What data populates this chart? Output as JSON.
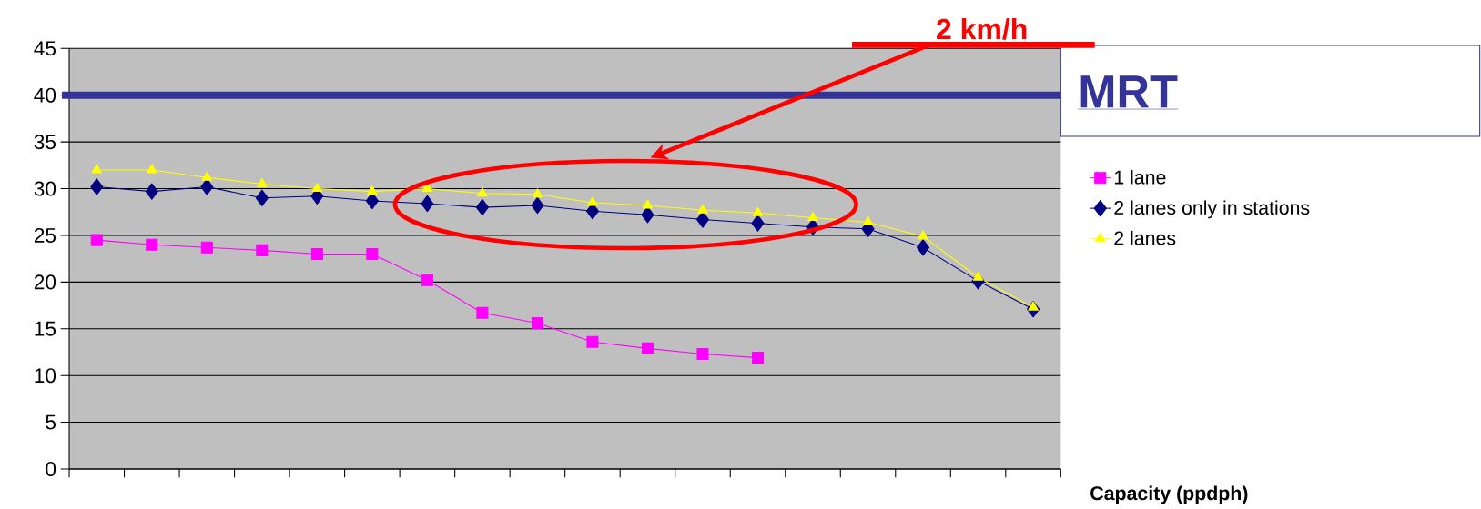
{
  "chart_data": {
    "type": "line",
    "xlabel": "Capacity (ppdph)",
    "categories": [
      null,
      null,
      null,
      null,
      null,
      null,
      null,
      null,
      null,
      null,
      null,
      null,
      null,
      null,
      null,
      null,
      null,
      null
    ],
    "series": [
      {
        "name": "1 lane",
        "color": "#ff00ff",
        "marker": "square",
        "values": [
          24.5,
          24,
          23.7,
          23.4,
          23,
          23,
          20.2,
          16.7,
          15.6,
          13.6,
          12.9,
          12.3,
          11.9,
          null,
          null,
          null,
          null,
          null
        ]
      },
      {
        "name": "2 lanes only in stations",
        "color": "#000080",
        "marker": "diamond",
        "values": [
          30.2,
          29.7,
          30.2,
          29,
          29.2,
          28.7,
          28.4,
          28,
          28.2,
          27.6,
          27.2,
          26.7,
          26.3,
          25.9,
          25.7,
          23.7,
          20.1,
          17.1
        ]
      },
      {
        "name": "2 lanes",
        "color": "#ffff00",
        "marker": "triangle",
        "values": [
          32,
          32,
          31.2,
          30.5,
          30,
          29.7,
          30,
          29.5,
          29.4,
          28.5,
          28.2,
          27.7,
          27.4,
          26.9,
          26.4,
          24.9,
          20.5,
          17.3
        ]
      }
    ],
    "ylim": [
      0,
      45
    ],
    "yticks": [
      0,
      5,
      10,
      15,
      20,
      25,
      30,
      35,
      40,
      45
    ],
    "grid": "y",
    "legend": "right",
    "line_style": "solid",
    "ref_lines": [
      {
        "axis": "y",
        "value": 40,
        "label": "MRT",
        "color": "#333399"
      }
    ],
    "annotations": [
      "2 km/h"
    ]
  }
}
